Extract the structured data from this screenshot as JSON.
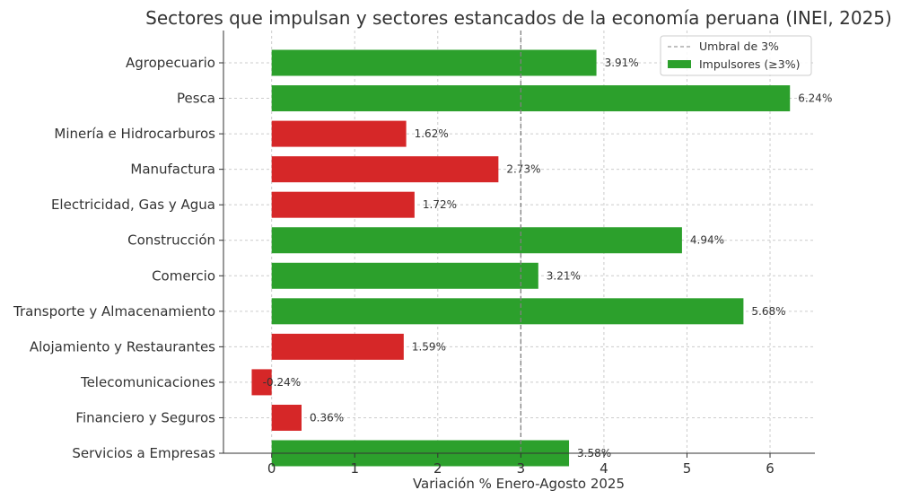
{
  "chart_data": {
    "type": "bar",
    "orientation": "horizontal",
    "title": "Sectores que impulsan y sectores estancados de la economía peruana (INEI, 2025)",
    "xlabel": "Variación % Enero-Agosto 2025",
    "ylabel": "",
    "xlim": [
      -0.58,
      6.54
    ],
    "xticks": [
      0,
      1,
      2,
      3,
      4,
      5,
      6
    ],
    "grid": true,
    "categories": [
      "Agropecuario",
      "Pesca",
      "Minería e Hidrocarburos",
      "Manufactura",
      "Electricidad, Gas y Agua",
      "Construcción",
      "Comercio",
      "Transporte y Almacenamiento",
      "Alojamiento y Restaurantes",
      "Telecomunicaciones",
      "Financiero y Seguros",
      "Servicios a Empresas"
    ],
    "values": [
      3.91,
      6.24,
      1.62,
      2.73,
      1.72,
      4.94,
      3.21,
      5.68,
      1.59,
      -0.24,
      0.36,
      3.58
    ],
    "value_labels": [
      "3.91%",
      "6.24%",
      "1.62%",
      "2.73%",
      "1.72%",
      "4.94%",
      "3.21%",
      "5.68%",
      "1.59%",
      "-0.24%",
      "0.36%",
      "3.58%"
    ],
    "threshold": {
      "value": 3,
      "label": "Umbral de 3%",
      "color": "#808080",
      "style": "dashed"
    },
    "colors": {
      "above": "#2ca02c",
      "below": "#d62728"
    },
    "legend": {
      "placement": "top-right",
      "entries": [
        "Umbral de 3%",
        "Impulsores (≥3%)"
      ]
    }
  }
}
